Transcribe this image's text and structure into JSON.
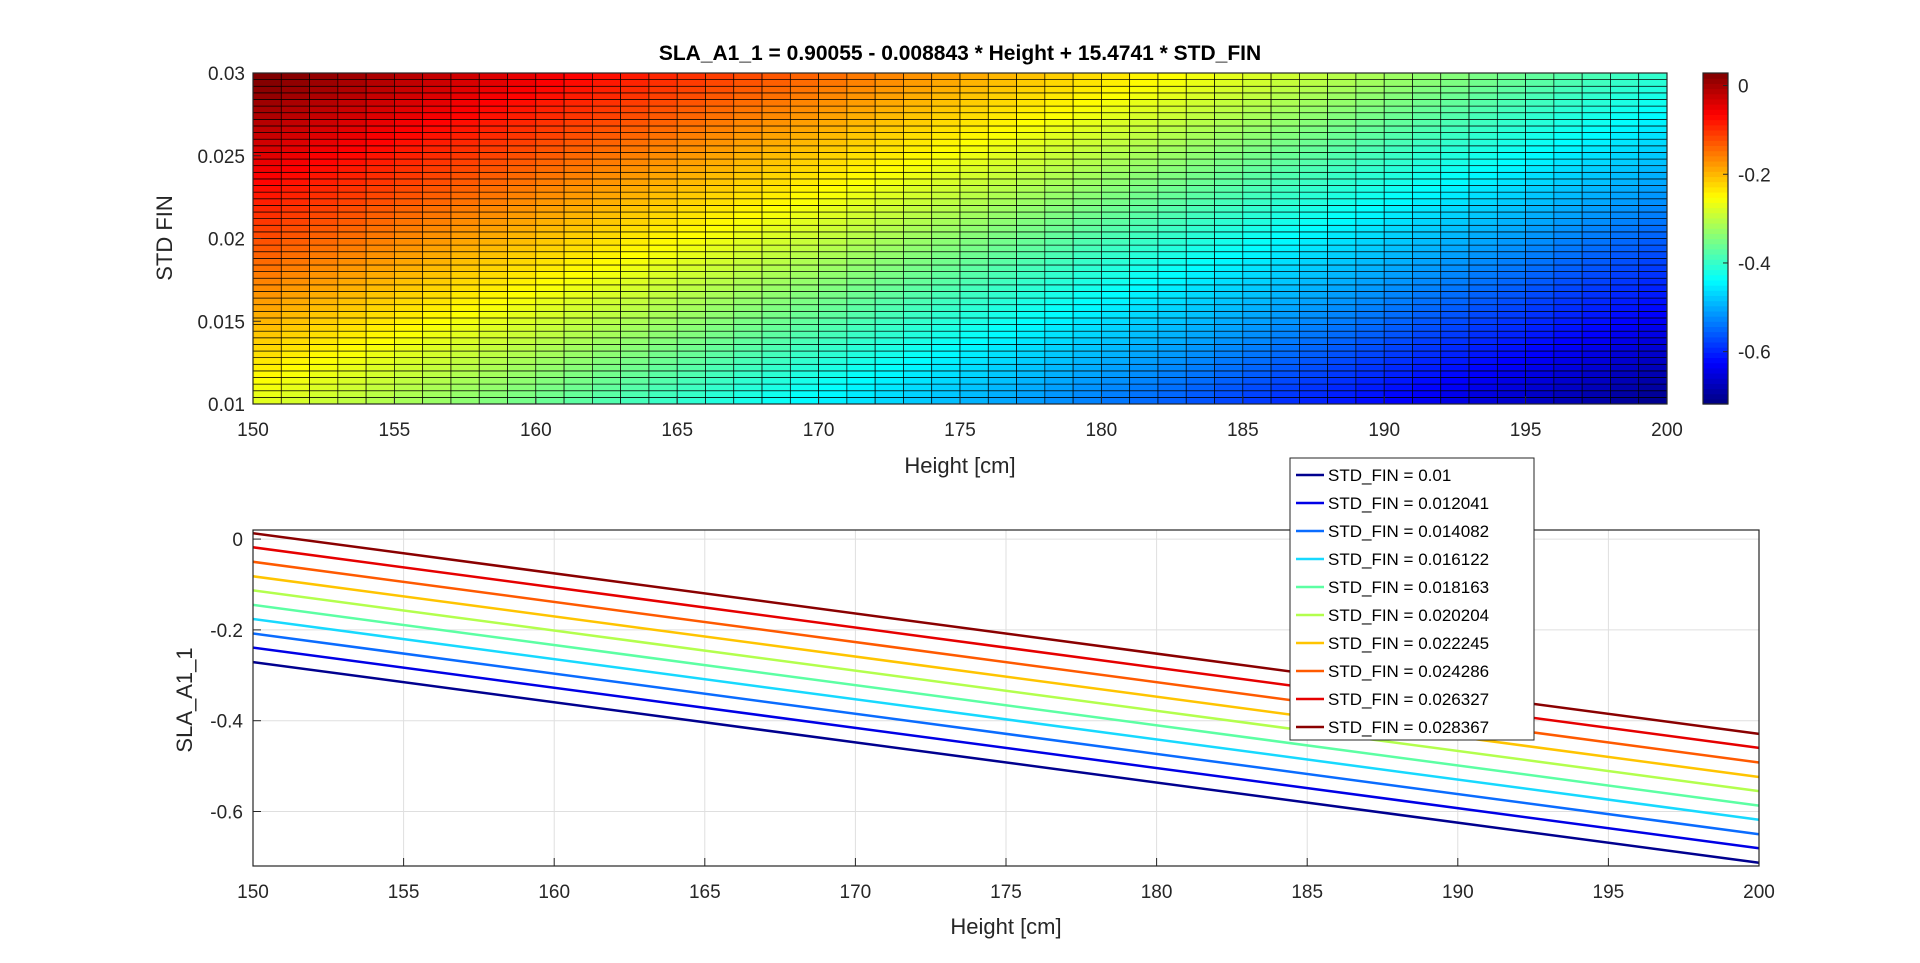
{
  "chart_data": [
    {
      "type": "heatmap",
      "title": "SLA_A1_1  =  0.90055  - 0.008843 * Height  +  15.4741 * STD_FIN",
      "xlabel": "Height [cm]",
      "ylabel": "STD FIN",
      "xlim": [
        150,
        200
      ],
      "ylim": [
        0.01,
        0.03
      ],
      "x_ticks": [
        150,
        155,
        160,
        165,
        170,
        175,
        180,
        185,
        190,
        195,
        200
      ],
      "x_tick_labels": [
        "150",
        "155",
        "160",
        "165",
        "170",
        "175",
        "180",
        "185",
        "190",
        "195",
        "200"
      ],
      "y_ticks": [
        0.01,
        0.015,
        0.02,
        0.025,
        0.03
      ],
      "y_tick_labels": [
        "0.01",
        "0.015",
        "0.02",
        "0.025",
        "0.03"
      ],
      "x_cells": 50,
      "y_cells": 50,
      "intercept": 0.90055,
      "coef_height": -0.008843,
      "coef_std_fin": 15.4741,
      "colorbar": {
        "colormap": "jet",
        "clim": [
          -0.718,
          0.0283
        ],
        "ticks": [
          0,
          -0.2,
          -0.4,
          -0.6
        ],
        "tick_labels": [
          "0",
          "-0.2",
          "-0.4",
          "-0.6"
        ]
      },
      "grid": false
    },
    {
      "type": "line",
      "xlabel": "Height [cm]",
      "ylabel": "SLA_A1_1",
      "xlim": [
        150,
        200
      ],
      "ylim": [
        -0.72,
        0.02
      ],
      "x_ticks": [
        150,
        155,
        160,
        165,
        170,
        175,
        180,
        185,
        190,
        195,
        200
      ],
      "x_tick_labels": [
        "150",
        "155",
        "160",
        "165",
        "170",
        "175",
        "180",
        "185",
        "190",
        "195",
        "200"
      ],
      "y_ticks": [
        0,
        -0.2,
        -0.4,
        -0.6
      ],
      "y_tick_labels": [
        "0",
        "-0.2",
        "-0.4",
        "-0.6"
      ],
      "x": [
        150,
        200
      ],
      "grid": true,
      "legend_position": "top-right",
      "series": [
        {
          "name": "STD_FIN = 0.01",
          "color": "#00008f",
          "values": [
            -0.271,
            -0.713
          ]
        },
        {
          "name": "STD_FIN = 0.012041",
          "color": "#0000e6",
          "values": [
            -0.239,
            -0.681
          ]
        },
        {
          "name": "STD_FIN = 0.014082",
          "color": "#0a6cff",
          "values": [
            -0.208,
            -0.65
          ]
        },
        {
          "name": "STD_FIN = 0.016122",
          "color": "#17d9ff",
          "values": [
            -0.176,
            -0.618
          ]
        },
        {
          "name": "STD_FIN = 0.018163",
          "color": "#5cffa3",
          "values": [
            -0.145,
            -0.587
          ]
        },
        {
          "name": "STD_FIN = 0.020204",
          "color": "#b3ff4d",
          "values": [
            -0.113,
            -0.555
          ]
        },
        {
          "name": "STD_FIN = 0.022245",
          "color": "#ffc400",
          "values": [
            -0.082,
            -0.524
          ]
        },
        {
          "name": "STD_FIN = 0.024286",
          "color": "#ff5a00",
          "values": [
            -0.05,
            -0.492
          ]
        },
        {
          "name": "STD_FIN = 0.026327",
          "color": "#e60000",
          "values": [
            -0.018,
            -0.46
          ]
        },
        {
          "name": "STD_FIN = 0.028367",
          "color": "#8a0000",
          "values": [
            0.013,
            -0.429
          ]
        }
      ]
    }
  ]
}
